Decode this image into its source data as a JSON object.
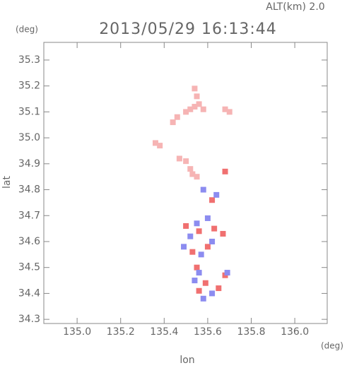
{
  "chart_data": {
    "type": "scatter",
    "title": "2013/05/29 16:13:44",
    "subtitle": "ALT(km) 2.0",
    "y_unit": "(deg)",
    "x_unit": "(deg)",
    "x_label": "lon",
    "y_label": "lat",
    "xlim": [
      134.847,
      136.149
    ],
    "ylim": [
      34.284,
      35.368
    ],
    "xticks": [
      {
        "value": 135,
        "label": "135.0"
      },
      135.2,
      135.4,
      135.6,
      135.8,
      {
        "value": 136,
        "label": "136.0"
      }
    ],
    "yticks": [
      34.3,
      34.4,
      34.5,
      34.6,
      34.7,
      34.8,
      34.9,
      {
        "value": 35,
        "label": "35.0"
      },
      35.1,
      35.2,
      35.3
    ],
    "series": [
      {
        "color": "#f6b4b4",
        "x": [
          135.54,
          135.52,
          135.56,
          135.55,
          135.5,
          135.58,
          135.68,
          135.7,
          135.44,
          135.46,
          135.36,
          135.38,
          135.47,
          135.5,
          135.53,
          135.52,
          135.55,
          135.54
        ],
        "values": [
          35.12,
          35.11,
          35.13,
          35.16,
          35.1,
          35.11,
          35.11,
          35.1,
          35.06,
          35.08,
          34.98,
          34.97,
          34.92,
          34.91,
          34.86,
          34.88,
          34.85,
          35.19
        ]
      },
      {
        "color": "#f07070",
        "x": [
          135.68,
          135.62,
          135.56,
          135.5,
          135.63,
          135.67,
          135.6,
          135.55,
          135.59,
          135.65,
          135.56,
          135.68,
          135.53
        ],
        "values": [
          34.87,
          34.76,
          34.64,
          34.66,
          34.65,
          34.63,
          34.58,
          34.5,
          34.44,
          34.42,
          34.41,
          34.47,
          34.56
        ]
      },
      {
        "color": "#8c8cf0",
        "x": [
          135.64,
          135.58,
          135.55,
          135.6,
          135.52,
          135.62,
          135.57,
          135.56,
          135.62,
          135.58,
          135.54,
          135.69,
          135.49
        ],
        "values": [
          34.78,
          34.8,
          34.67,
          34.69,
          34.62,
          34.6,
          34.55,
          34.48,
          34.4,
          34.38,
          34.45,
          34.48,
          34.58
        ]
      }
    ]
  }
}
